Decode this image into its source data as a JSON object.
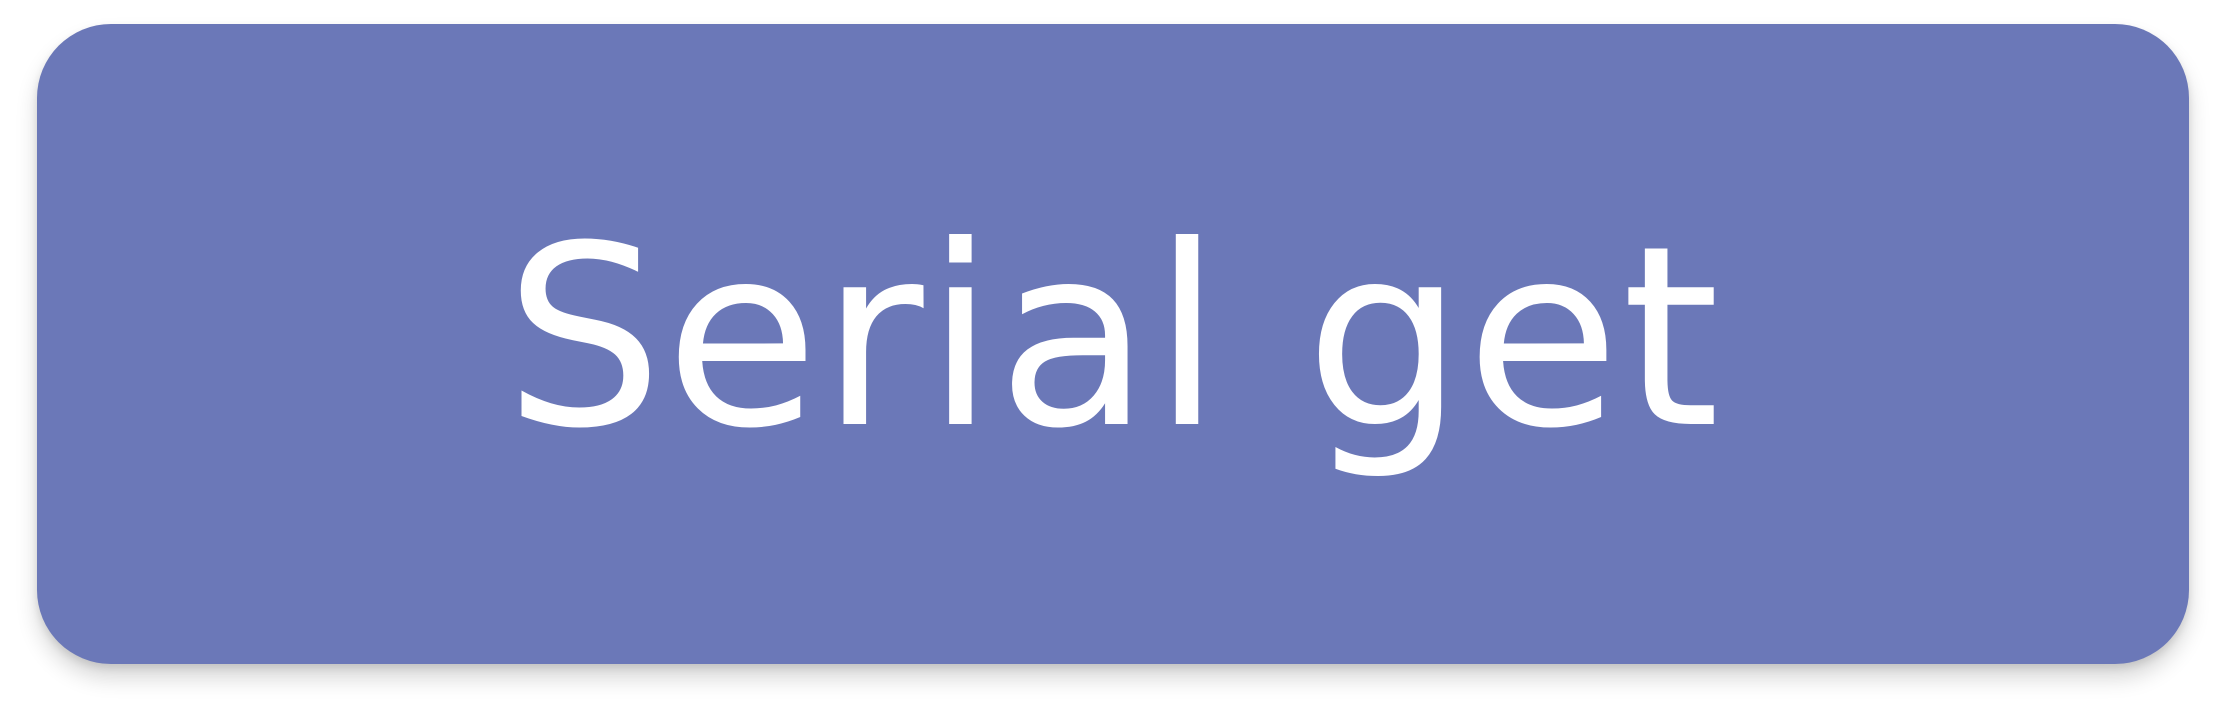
{
  "button": {
    "label": "Serial get",
    "background_color": "#6b78b8",
    "text_color": "#ffffff"
  }
}
